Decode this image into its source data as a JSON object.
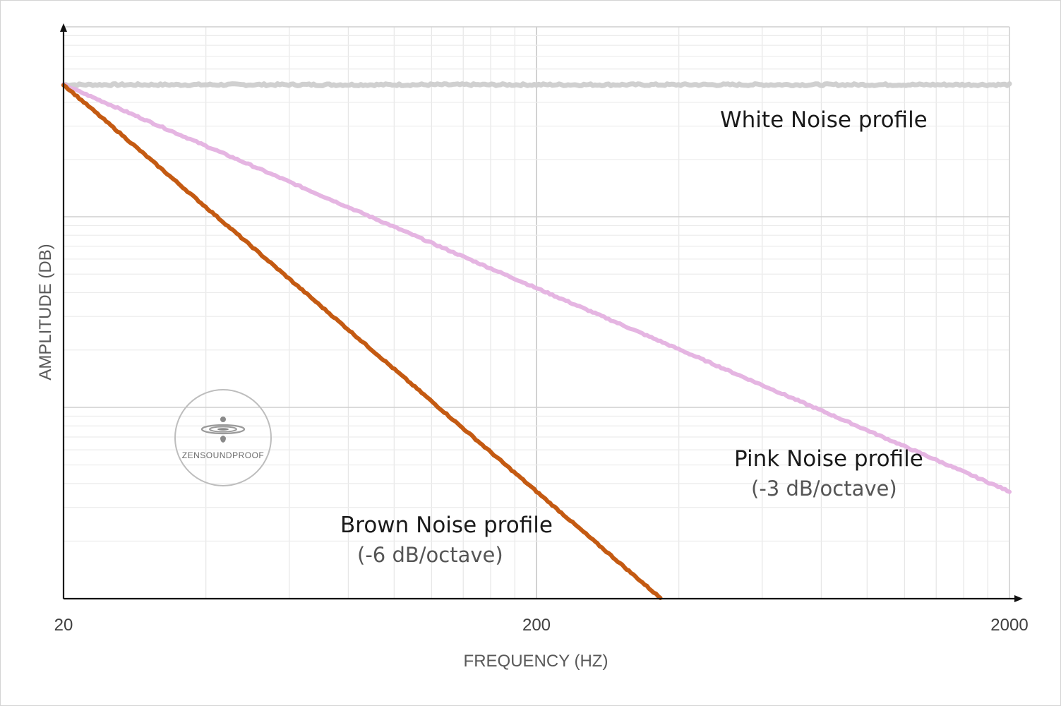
{
  "chart_data": {
    "type": "line",
    "xscale": "log",
    "xlim": [
      20,
      2000
    ],
    "ylim": [
      -30,
      3
    ],
    "x_ticks": [
      "20",
      "200",
      "2000"
    ],
    "xlabel": "FREQUENCY (HZ)",
    "ylabel": "AMPLITUDE (DB)",
    "grid": true,
    "series": [
      {
        "key": "white",
        "color": "#d0d0d0",
        "slope_db_per_octave": 0,
        "points": [
          [
            20,
            0
          ],
          [
            50,
            0
          ],
          [
            200,
            0
          ],
          [
            500,
            0
          ],
          [
            2000,
            0
          ]
        ]
      },
      {
        "key": "pink",
        "color": "#e5b5e2",
        "slope_db_per_octave": -3,
        "points": [
          [
            20,
            0
          ],
          [
            40,
            -3
          ],
          [
            80,
            -6
          ],
          [
            200,
            -10
          ],
          [
            400,
            -13
          ],
          [
            800,
            -16
          ],
          [
            2000,
            -20
          ]
        ]
      },
      {
        "key": "brown",
        "color": "#c45a12",
        "slope_db_per_octave": -6,
        "points": [
          [
            20,
            0
          ],
          [
            40,
            -6
          ],
          [
            80,
            -12
          ],
          [
            160,
            -18
          ],
          [
            320,
            -24
          ],
          [
            400,
            -26
          ],
          [
            500,
            -28
          ],
          [
            560,
            -29
          ]
        ]
      }
    ],
    "annotations": [
      {
        "key": "white",
        "label": "White Noise profile",
        "sublabel": ""
      },
      {
        "key": "pink",
        "label": "Pink Noise profile",
        "sublabel": "(-3 dB/octave)"
      },
      {
        "key": "brown",
        "label": "Brown Noise profile",
        "sublabel": "(-6 dB/octave)"
      }
    ]
  },
  "watermark": {
    "text": "ZENSOUNDPROOF",
    "icon": "water-drop-ripple-icon"
  }
}
